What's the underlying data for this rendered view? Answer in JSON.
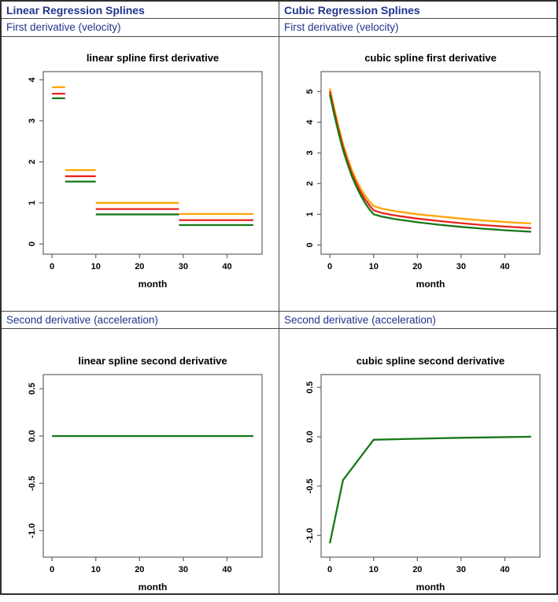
{
  "page": {
    "background": "#ffffff",
    "header_text_color": "#21348c",
    "border_outer_color": "#2e2e2e",
    "border_inner_color": "#4a4a4a",
    "frame_color": "#6e6e6e"
  },
  "headers": {
    "left": "Linear Regression Splines",
    "right": "Cubic Regression Splines"
  },
  "subheaders": {
    "first": "First derivative (velocity)",
    "second": "Second derivative (acceleration)"
  },
  "chart_data": [
    {
      "id": "linear-spline-first-derivative",
      "type": "line",
      "title": "linear spline first derivative",
      "xlabel": "month",
      "ylabel": "",
      "xlim": [
        -2,
        48
      ],
      "ylim": [
        -0.25,
        4.2
      ],
      "xticks": [
        0,
        10,
        20,
        30,
        40
      ],
      "yticks": [
        0,
        1,
        2,
        3,
        4
      ],
      "ytick_labels": [
        "0",
        "1",
        "2",
        "3",
        "4"
      ],
      "grid": false,
      "legend": "none",
      "series": [
        {
          "name": "orange",
          "color": "#FFA500",
          "segments": [
            {
              "x1": 0,
              "x2": 3,
              "y": 3.82
            },
            {
              "x1": 3,
              "x2": 10,
              "y": 1.8
            },
            {
              "x1": 10,
              "x2": 29,
              "y": 1.0
            },
            {
              "x1": 29,
              "x2": 46,
              "y": 0.73
            }
          ]
        },
        {
          "name": "red",
          "color": "#EB241D",
          "segments": [
            {
              "x1": 0,
              "x2": 3,
              "y": 3.66
            },
            {
              "x1": 3,
              "x2": 10,
              "y": 1.65
            },
            {
              "x1": 10,
              "x2": 29,
              "y": 0.85
            },
            {
              "x1": 29,
              "x2": 46,
              "y": 0.58
            }
          ]
        },
        {
          "name": "darkgreen",
          "color": "#177817",
          "segments": [
            {
              "x1": 0,
              "x2": 3,
              "y": 3.55
            },
            {
              "x1": 3,
              "x2": 10,
              "y": 1.52
            },
            {
              "x1": 10,
              "x2": 29,
              "y": 0.72
            },
            {
              "x1": 29,
              "x2": 46,
              "y": 0.46
            }
          ]
        }
      ]
    },
    {
      "id": "cubic-spline-first-derivative",
      "type": "line",
      "title": "cubic spline first derivative",
      "xlabel": "month",
      "ylabel": "",
      "xlim": [
        -2,
        48
      ],
      "ylim": [
        -0.3,
        5.65
      ],
      "xticks": [
        0,
        10,
        20,
        30,
        40
      ],
      "yticks": [
        0,
        1,
        2,
        3,
        4,
        5
      ],
      "ytick_labels": [
        "0",
        "1",
        "2",
        "3",
        "4",
        "5"
      ],
      "grid": false,
      "legend": "none",
      "series": [
        {
          "name": "orange",
          "color": "#FFA500",
          "points": [
            [
              0,
              5.1
            ],
            [
              1,
              4.45
            ],
            [
              2,
              3.85
            ],
            [
              3,
              3.3
            ],
            [
              4,
              2.85
            ],
            [
              5,
              2.45
            ],
            [
              6,
              2.12
            ],
            [
              7,
              1.85
            ],
            [
              8,
              1.62
            ],
            [
              9,
              1.42
            ],
            [
              10,
              1.27
            ],
            [
              12,
              1.18
            ],
            [
              15,
              1.1
            ],
            [
              20,
              1.0
            ],
            [
              25,
              0.93
            ],
            [
              30,
              0.86
            ],
            [
              35,
              0.8
            ],
            [
              40,
              0.75
            ],
            [
              46,
              0.7
            ]
          ]
        },
        {
          "name": "red",
          "color": "#EB241D",
          "points": [
            [
              0,
              5.0
            ],
            [
              1,
              4.35
            ],
            [
              2,
              3.75
            ],
            [
              3,
              3.2
            ],
            [
              4,
              2.75
            ],
            [
              5,
              2.35
            ],
            [
              6,
              2.02
            ],
            [
              7,
              1.74
            ],
            [
              8,
              1.5
            ],
            [
              9,
              1.3
            ],
            [
              10,
              1.13
            ],
            [
              12,
              1.04
            ],
            [
              15,
              0.96
            ],
            [
              20,
              0.86
            ],
            [
              25,
              0.78
            ],
            [
              30,
              0.71
            ],
            [
              35,
              0.65
            ],
            [
              40,
              0.6
            ],
            [
              46,
              0.55
            ]
          ]
        },
        {
          "name": "darkgreen",
          "color": "#177817",
          "points": [
            [
              0,
              4.9
            ],
            [
              1,
              4.25
            ],
            [
              2,
              3.65
            ],
            [
              3,
              3.1
            ],
            [
              4,
              2.65
            ],
            [
              5,
              2.25
            ],
            [
              6,
              1.92
            ],
            [
              7,
              1.63
            ],
            [
              8,
              1.38
            ],
            [
              9,
              1.17
            ],
            [
              10,
              1.0
            ],
            [
              12,
              0.92
            ],
            [
              15,
              0.84
            ],
            [
              20,
              0.74
            ],
            [
              25,
              0.66
            ],
            [
              30,
              0.59
            ],
            [
              35,
              0.53
            ],
            [
              40,
              0.48
            ],
            [
              46,
              0.43
            ]
          ]
        }
      ]
    },
    {
      "id": "linear-spline-second-derivative",
      "type": "line",
      "title": "linear spline second derivative",
      "xlabel": "month",
      "ylabel": "",
      "xlim": [
        -2,
        48
      ],
      "ylim": [
        -1.28,
        0.65
      ],
      "xticks": [
        0,
        10,
        20,
        30,
        40
      ],
      "yticks": [
        -1.0,
        -0.5,
        0.0,
        0.5
      ],
      "ytick_labels": [
        "-1.0",
        "-0.5",
        "0.0",
        "0.5"
      ],
      "grid": false,
      "legend": "none",
      "series": [
        {
          "name": "darkgreen",
          "color": "#177817",
          "points": [
            [
              0,
              0.0
            ],
            [
              46,
              0.0
            ]
          ]
        }
      ]
    },
    {
      "id": "cubic-spline-second-derivative",
      "type": "line",
      "title": "cubic spline second derivative",
      "xlabel": "month",
      "ylabel": "",
      "xlim": [
        -2,
        48
      ],
      "ylim": [
        -1.22,
        0.63
      ],
      "xticks": [
        0,
        10,
        20,
        30,
        40
      ],
      "yticks": [
        -1.0,
        -0.5,
        0.0,
        0.5
      ],
      "ytick_labels": [
        "-1.0",
        "-0.5",
        "0.0",
        "0.5"
      ],
      "grid": false,
      "legend": "none",
      "series": [
        {
          "name": "darkgreen",
          "color": "#177817",
          "points": [
            [
              0,
              -1.08
            ],
            [
              3,
              -0.44
            ],
            [
              10,
              -0.03
            ],
            [
              20,
              -0.02
            ],
            [
              30,
              -0.01
            ],
            [
              46,
              0.0
            ]
          ]
        }
      ]
    }
  ]
}
